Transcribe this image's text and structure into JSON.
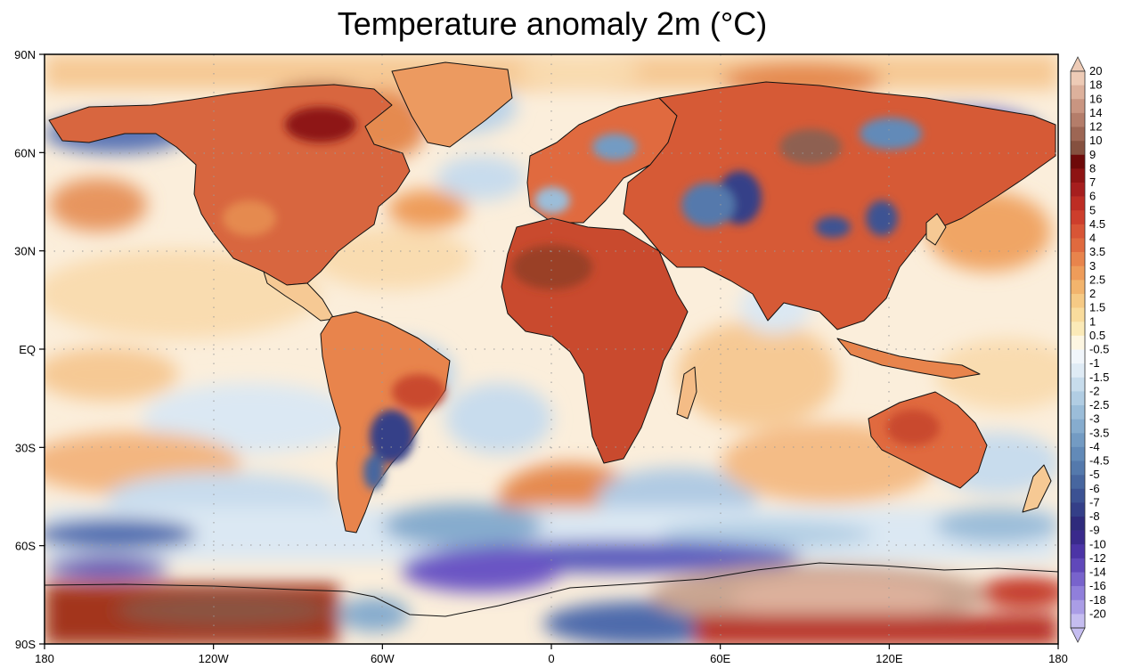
{
  "title": "Temperature anomaly 2m (°C)",
  "lat_labels": [
    "90N",
    "60N",
    "30N",
    "EQ",
    "30S",
    "60S",
    "90S"
  ],
  "lon_labels": [
    "180",
    "120W",
    "60W",
    "0",
    "60E",
    "120E",
    "180"
  ],
  "colorbar": {
    "labels": [
      "20",
      "18",
      "16",
      "14",
      "12",
      "10",
      "9",
      "8",
      "7",
      "6",
      "5",
      "4.5",
      "4",
      "3.5",
      "3",
      "2.5",
      "2",
      "1.5",
      "1",
      "0.5",
      "-0.5",
      "-1",
      "-1.5",
      "-2",
      "-2.5",
      "-3",
      "-3.5",
      "-4",
      "-4.5",
      "-5",
      "-6",
      "-7",
      "-8",
      "-9",
      "-10",
      "-12",
      "-14",
      "-16",
      "-18",
      "-20"
    ],
    "colors": [
      "#eecbb6",
      "#ddb19c",
      "#c99581",
      "#b47d6a",
      "#9d6654",
      "#85503f",
      "#6e0a0a",
      "#8e1414",
      "#a61e1e",
      "#bd2d24",
      "#cd3e2c",
      "#d85536",
      "#e06a3f",
      "#e8844c",
      "#ee9c5a",
      "#f2b46d",
      "#f6ca85",
      "#f9dc9d",
      "#fbeab8",
      "#fdf6e2",
      "#f1f6fb",
      "#dfebf5",
      "#c7dcec",
      "#b1cde3",
      "#9bbdd9",
      "#86acce",
      "#739bc3",
      "#628ab8",
      "#5479ac",
      "#47669f",
      "#3c5293",
      "#343f88",
      "#2f2b7c",
      "#3a2a8c",
      "#4c34a6",
      "#6048ba",
      "#7863cc",
      "#907fdb",
      "#aa9de6",
      "#c5bdf0"
    ]
  }
}
